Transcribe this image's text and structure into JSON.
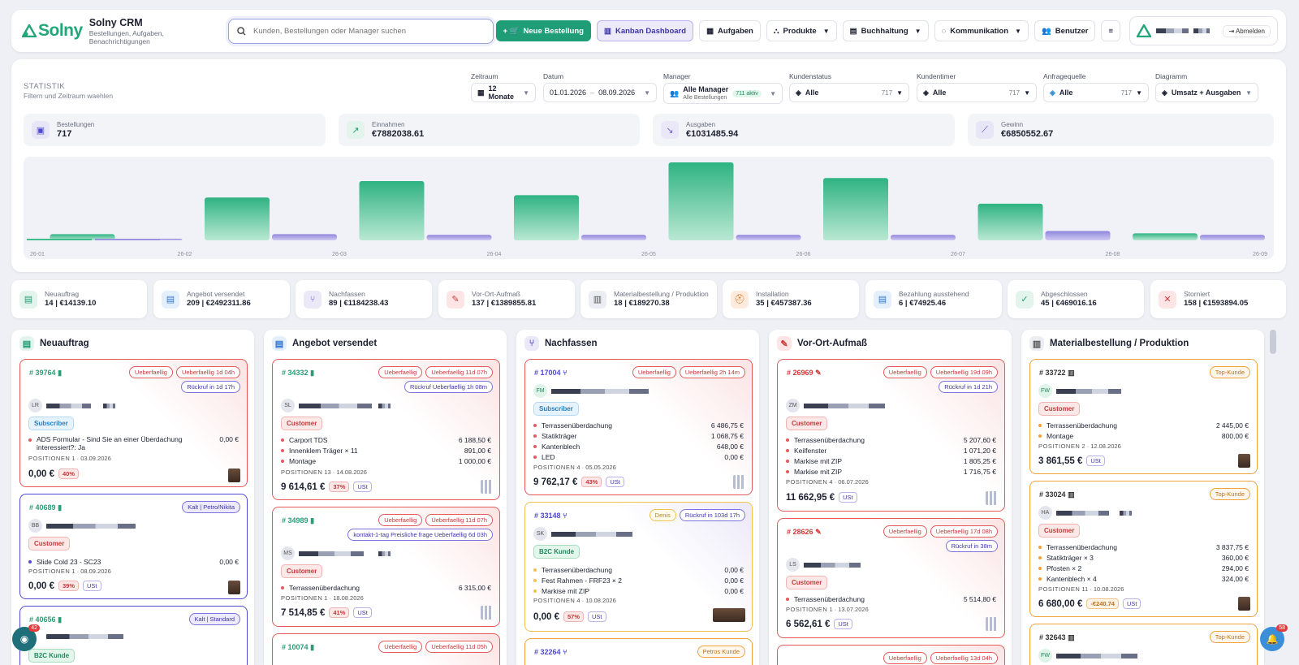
{
  "brand": {
    "logo": "Solny",
    "title": "Solny CRM",
    "subtitle": "Bestellungen, Aufgaben, Benachrichtigungen"
  },
  "search": {
    "placeholder": "Kunden, Bestellungen oder Manager suchen"
  },
  "nav": {
    "new_order": "Neue Bestellung",
    "kanban": "Kanban Dashboard",
    "tasks": "Aufgaben",
    "products": "Produkte",
    "accounting": "Buchhaltung",
    "communication": "Kommunikation",
    "users": "Benutzer",
    "logout": "Abmelden"
  },
  "stats": {
    "title": "STATISTIK",
    "subtitle": "Filtern und Zeitraum waehlen",
    "filters": {
      "period_label": "Zeitraum",
      "period_value": "12 Monate",
      "date_label": "Datum",
      "date_from": "01.01.2026",
      "date_to": "08.09.2026",
      "manager_label": "Manager",
      "manager_value": "Alle Manager",
      "manager_sub": "Alle Bestellungen",
      "manager_badge": "711 aktiv",
      "status_label": "Kundenstatus",
      "status_value": "Alle",
      "status_count": "717",
      "timer_label": "Kundentimer",
      "timer_value": "Alle",
      "timer_count": "717",
      "source_label": "Anfragequelle",
      "source_value": "Alle",
      "source_count": "717",
      "chart_label": "Diagramm",
      "chart_value": "Umsatz + Ausgaben"
    },
    "kpis": {
      "orders_label": "Bestellungen",
      "orders_value": "717",
      "revenue_label": "Einnahmen",
      "revenue_value": "€7882038.61",
      "expenses_label": "Ausgaben",
      "expenses_value": "€1031485.94",
      "profit_label": "Gewinn",
      "profit_value": "€6850552.67"
    }
  },
  "chart_data": {
    "type": "bar",
    "categories": [
      "26-01",
      "26-02",
      "26-03",
      "26-04",
      "26-05",
      "26-06",
      "26-07",
      "26-08",
      "26-09"
    ],
    "series": [
      {
        "values": [
          0.02,
          0.08,
          0.55,
          0.76,
          0.58,
          1.0,
          0.8,
          0.47,
          0.09
        ]
      },
      {
        "values": [
          0.02,
          0.02,
          0.08,
          0.07,
          0.07,
          0.07,
          0.07,
          0.12,
          0.07
        ]
      }
    ],
    "colors": {
      "revenue": "#3fbd8a",
      "expenses": "#9b93e0"
    },
    "grid": false
  },
  "statuses": [
    {
      "label": "Neuauftrag",
      "value": "14 | €14139.10"
    },
    {
      "label": "Angebot versendet",
      "value": "209 | €2492311.86"
    },
    {
      "label": "Nachfassen",
      "value": "89 | €1184238.43"
    },
    {
      "label": "Vor-Ort-Aufmaß",
      "value": "137 | €1389855.81"
    },
    {
      "label": "Materialbestellung / Produktion",
      "value": "18 | €189270.38"
    },
    {
      "label": "Installation",
      "value": "35 | €457387.36"
    },
    {
      "label": "Bezahlung ausstehend",
      "value": "6 | €74925.46"
    },
    {
      "label": "Abgeschlossen",
      "value": "45 | €469016.16"
    },
    {
      "label": "Storniert",
      "value": "158 | €1593894.05"
    }
  ],
  "columns": [
    {
      "title": "Neuauftrag"
    },
    {
      "title": "Angebot versendet"
    },
    {
      "title": "Nachfassen"
    },
    {
      "title": "Vor-Ort-Aufmaß"
    },
    {
      "title": "Materialbestellung / Produktion"
    }
  ],
  "cards": {
    "c1": {
      "id": "# 39764",
      "b1": "Ueberfaellig",
      "b2": "Ueberfaellig 1d 04h",
      "b3": "Rückruf in 1d 17h",
      "avatar": "LR",
      "tag": "Subscriber",
      "item1": "ADS Formular - Sind Sie an einer Überdachung interessiert?: Ja",
      "amt1": "0,00 €",
      "pos": "POSITIONEN",
      "pos_n": "1",
      "date": "03.09.2026",
      "total": "0,00 €",
      "pct": "40%"
    },
    "c2": {
      "id": "# 40689",
      "b1": "Kalt | Petro/Nikita",
      "avatar": "BB",
      "tag": "Customer",
      "item1": "Slide Cold 23 - SC23",
      "amt1": "0,00 €",
      "pos": "POSITIONEN",
      "pos_n": "1",
      "date": "08.09.2026",
      "total": "0,00 €",
      "pct": "39%",
      "ust": "USt"
    },
    "c3": {
      "id": "# 40656",
      "b1": "Kalt | Standard",
      "tag": "B2C Kunde"
    },
    "c4": {
      "id": "# 34332",
      "b1": "Ueberfaellig",
      "b2": "Ueberfaellig 11d 07h",
      "b3": "Rückruf Ueberfaellig 1h 08m",
      "avatar": "SL",
      "tag": "Customer",
      "i1": "Carport TDS",
      "a1": "6 188,50 €",
      "i2": "Innenklem Träger × 11",
      "a2": "891,00 €",
      "i3": "Montage",
      "a3": "1 000,00 €",
      "pos": "POSITIONEN",
      "pos_n": "13",
      "date": "14.08.2026",
      "total": "9 614,61 €",
      "pct": "37%",
      "ust": "USt"
    },
    "c5": {
      "id": "# 34989",
      "b1": "Ueberfaellig",
      "b2": "Ueberfaellig 11d 07h",
      "b3": "kontakt-1-tag Preisliche frage Ueberfaellig 6d 03h",
      "avatar": "MS",
      "tag": "Customer",
      "i1": "Terrassenüberdachung",
      "a1": "6 315,00 €",
      "pos": "POSITIONEN",
      "pos_n": "1",
      "date": "18.08.2026",
      "total": "7 514,85 €",
      "pct": "41%",
      "ust": "USt"
    },
    "c6": {
      "id": "# 10074",
      "b1": "Ueberfaellig",
      "b2": "Ueberfaellig 11d 05h"
    },
    "c7": {
      "id": "# 17004",
      "b1": "Ueberfaellig",
      "b2": "Ueberfaellig 2h 14m",
      "avatar": "FM",
      "tag": "Subscriber",
      "i1": "Terrassenüberdachung",
      "a1": "6 486,75 €",
      "i2": "Statikträger",
      "a2": "1 068,75 €",
      "i3": "Kantenblech",
      "a3": "648,00 €",
      "i4": "LED",
      "a4": "0,00 €",
      "pos": "POSITIONEN",
      "pos_n": "4",
      "date": "05.05.2026",
      "total": "9 762,17 €",
      "pct": "43%",
      "ust": "USt"
    },
    "c8": {
      "id": "# 33148",
      "b1": "Denis",
      "b2": "Rückruf in 103d 17h",
      "avatar": "SK",
      "tag": "B2C Kunde",
      "i1": "Terrassenüberdachung",
      "a1": "0,00 €",
      "i2": "Fest Rahmen - FRF23 × 2",
      "a2": "0,00 €",
      "i3": "Markise mit ZIP",
      "a3": "0,00 €",
      "pos": "POSITIONEN",
      "pos_n": "4",
      "date": "10.08.2026",
      "total": "0,00 €",
      "pct": "57%",
      "ust": "USt"
    },
    "c9": {
      "id": "# 32264",
      "b1": "Petros Kunde"
    },
    "c10": {
      "id": "# 26969",
      "b1": "Ueberfaellig",
      "b2": "Ueberfaellig 19d 09h",
      "b3": "Rückruf in 1d 21h",
      "avatar": "ZM",
      "tag": "Customer",
      "i1": "Terrassenüberdachung",
      "a1": "5 207,60 €",
      "i2": "Keilfenster",
      "a2": "1 071,20 €",
      "i3": "Markise mit ZIP",
      "a3": "1 805,25 €",
      "i4": "Markise mit ZIP",
      "a4": "1 716,75 €",
      "pos": "POSITIONEN",
      "pos_n": "4",
      "date": "06.07.2026",
      "total": "11 662,95 €",
      "ust": "USt"
    },
    "c11": {
      "id": "# 28626",
      "b1": "Ueberfaellig",
      "b2": "Ueberfaellig 17d 08h",
      "b3": "Rückruf in 38m",
      "avatar": "LS",
      "tag": "Customer",
      "i1": "Terrassenüberdachung",
      "a1": "5 514,80 €",
      "pos": "POSITIONEN",
      "pos_n": "1",
      "date": "13.07.2026",
      "total": "6 562,61 €",
      "ust": "USt"
    },
    "c12": {
      "b1": "Ueberfaellig",
      "b2": "Ueberfaellig 13d 04h"
    },
    "c13": {
      "id": "# 33722",
      "b1": "Top-Kunde",
      "avatar": "FW",
      "tag": "Customer",
      "i1": "Terrassenüberdachung",
      "a1": "2 445,00 €",
      "i2": "Montage",
      "a2": "800,00 €",
      "pos": "POSITIONEN",
      "pos_n": "2",
      "date": "12.08.2026",
      "total": "3 861,55 €",
      "ust": "USt"
    },
    "c14": {
      "id": "# 33024",
      "b1": "Top-Kunde",
      "avatar": "HA",
      "tag": "Customer",
      "i1": "Terrassenüberdachung",
      "a1": "3 837,75 €",
      "i2": "Statikträger × 3",
      "a2": "360,00 €",
      "i3": "Pfosten × 2",
      "a3": "294,00 €",
      "i4": "Kantenblech × 4",
      "a4": "324,00 €",
      "pos": "POSITIONEN",
      "pos_n": "11",
      "date": "10.08.2026",
      "total": "6 680,00 €",
      "disc": "-€240.74",
      "ust": "USt"
    },
    "c15": {
      "id": "# 32643",
      "b1": "Top-Kunde",
      "avatar": "FW"
    }
  },
  "chat_badge": "42",
  "bell_badge": "58"
}
